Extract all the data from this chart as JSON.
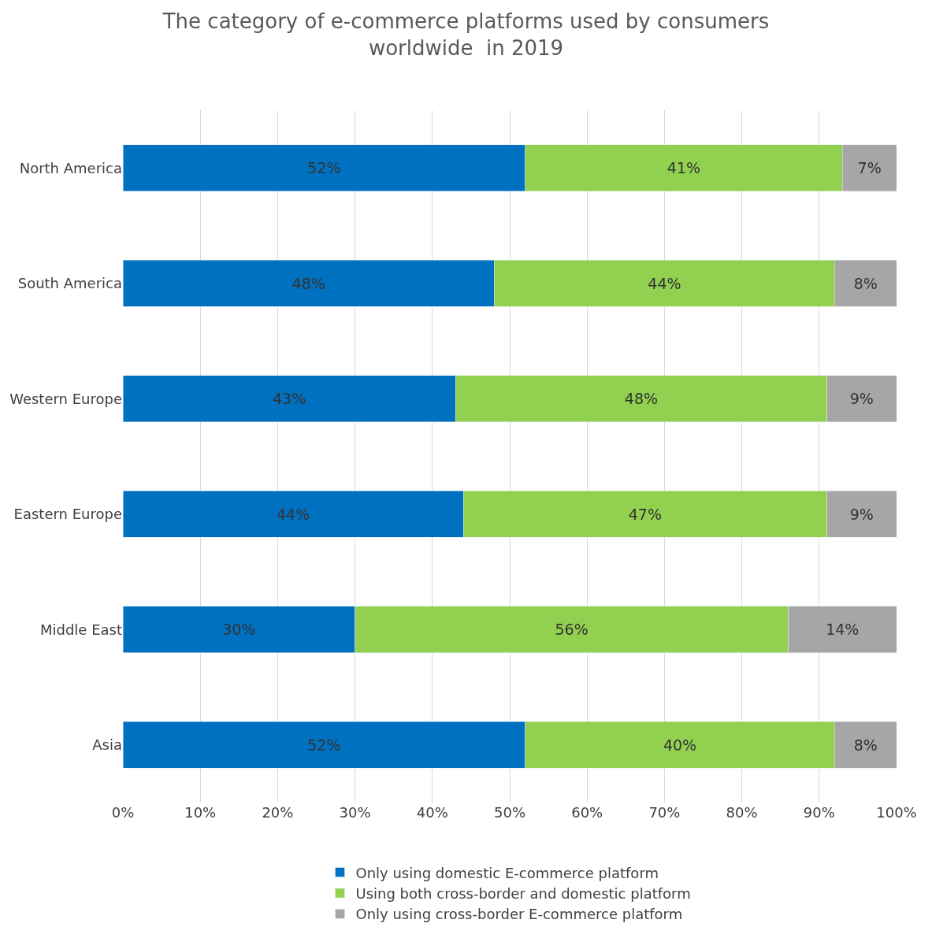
{
  "chart_data": {
    "type": "bar",
    "orientation": "horizontal",
    "stacked": true,
    "title": "The category of e-commerce platforms used by consumers\nworldwide  in 2019",
    "categories": [
      "North America",
      "South America",
      "Western Europe",
      "Eastern Europe",
      "Middle East",
      "Asia"
    ],
    "series": [
      {
        "name": "Only using domestic E-commerce platform",
        "color": "#0070c0",
        "values": [
          52,
          48,
          43,
          44,
          30,
          52
        ],
        "value_labels": [
          "52%",
          "48%",
          "43%",
          "44%",
          "30%",
          "52%"
        ]
      },
      {
        "name": "Using both cross-border and domestic platform",
        "color": "#92d050",
        "values": [
          41,
          44,
          48,
          47,
          56,
          40
        ],
        "value_labels": [
          "41%",
          "44%",
          "48%",
          "47%",
          "56%",
          "40%"
        ]
      },
      {
        "name": "Only using cross-border E-commerce platform",
        "color": "#a6a6a6",
        "values": [
          7,
          8,
          9,
          9,
          14,
          8
        ],
        "value_labels": [
          "7%",
          "8%",
          "9%",
          "9%",
          "14%",
          "8%"
        ]
      }
    ],
    "xlim": [
      0,
      100
    ],
    "xticks": [
      {
        "value": 0,
        "label": "0%"
      },
      {
        "value": 10,
        "label": "10%"
      },
      {
        "value": 20,
        "label": "20%"
      },
      {
        "value": 30,
        "label": "30%"
      },
      {
        "value": 40,
        "label": "40%"
      },
      {
        "value": 50,
        "label": "50%"
      },
      {
        "value": 60,
        "label": "60%"
      },
      {
        "value": 70,
        "label": "70%"
      },
      {
        "value": 80,
        "label": "80%"
      },
      {
        "value": 90,
        "label": "90%"
      },
      {
        "value": 100,
        "label": "100%"
      }
    ],
    "grid": "x",
    "legend": "bottom"
  }
}
